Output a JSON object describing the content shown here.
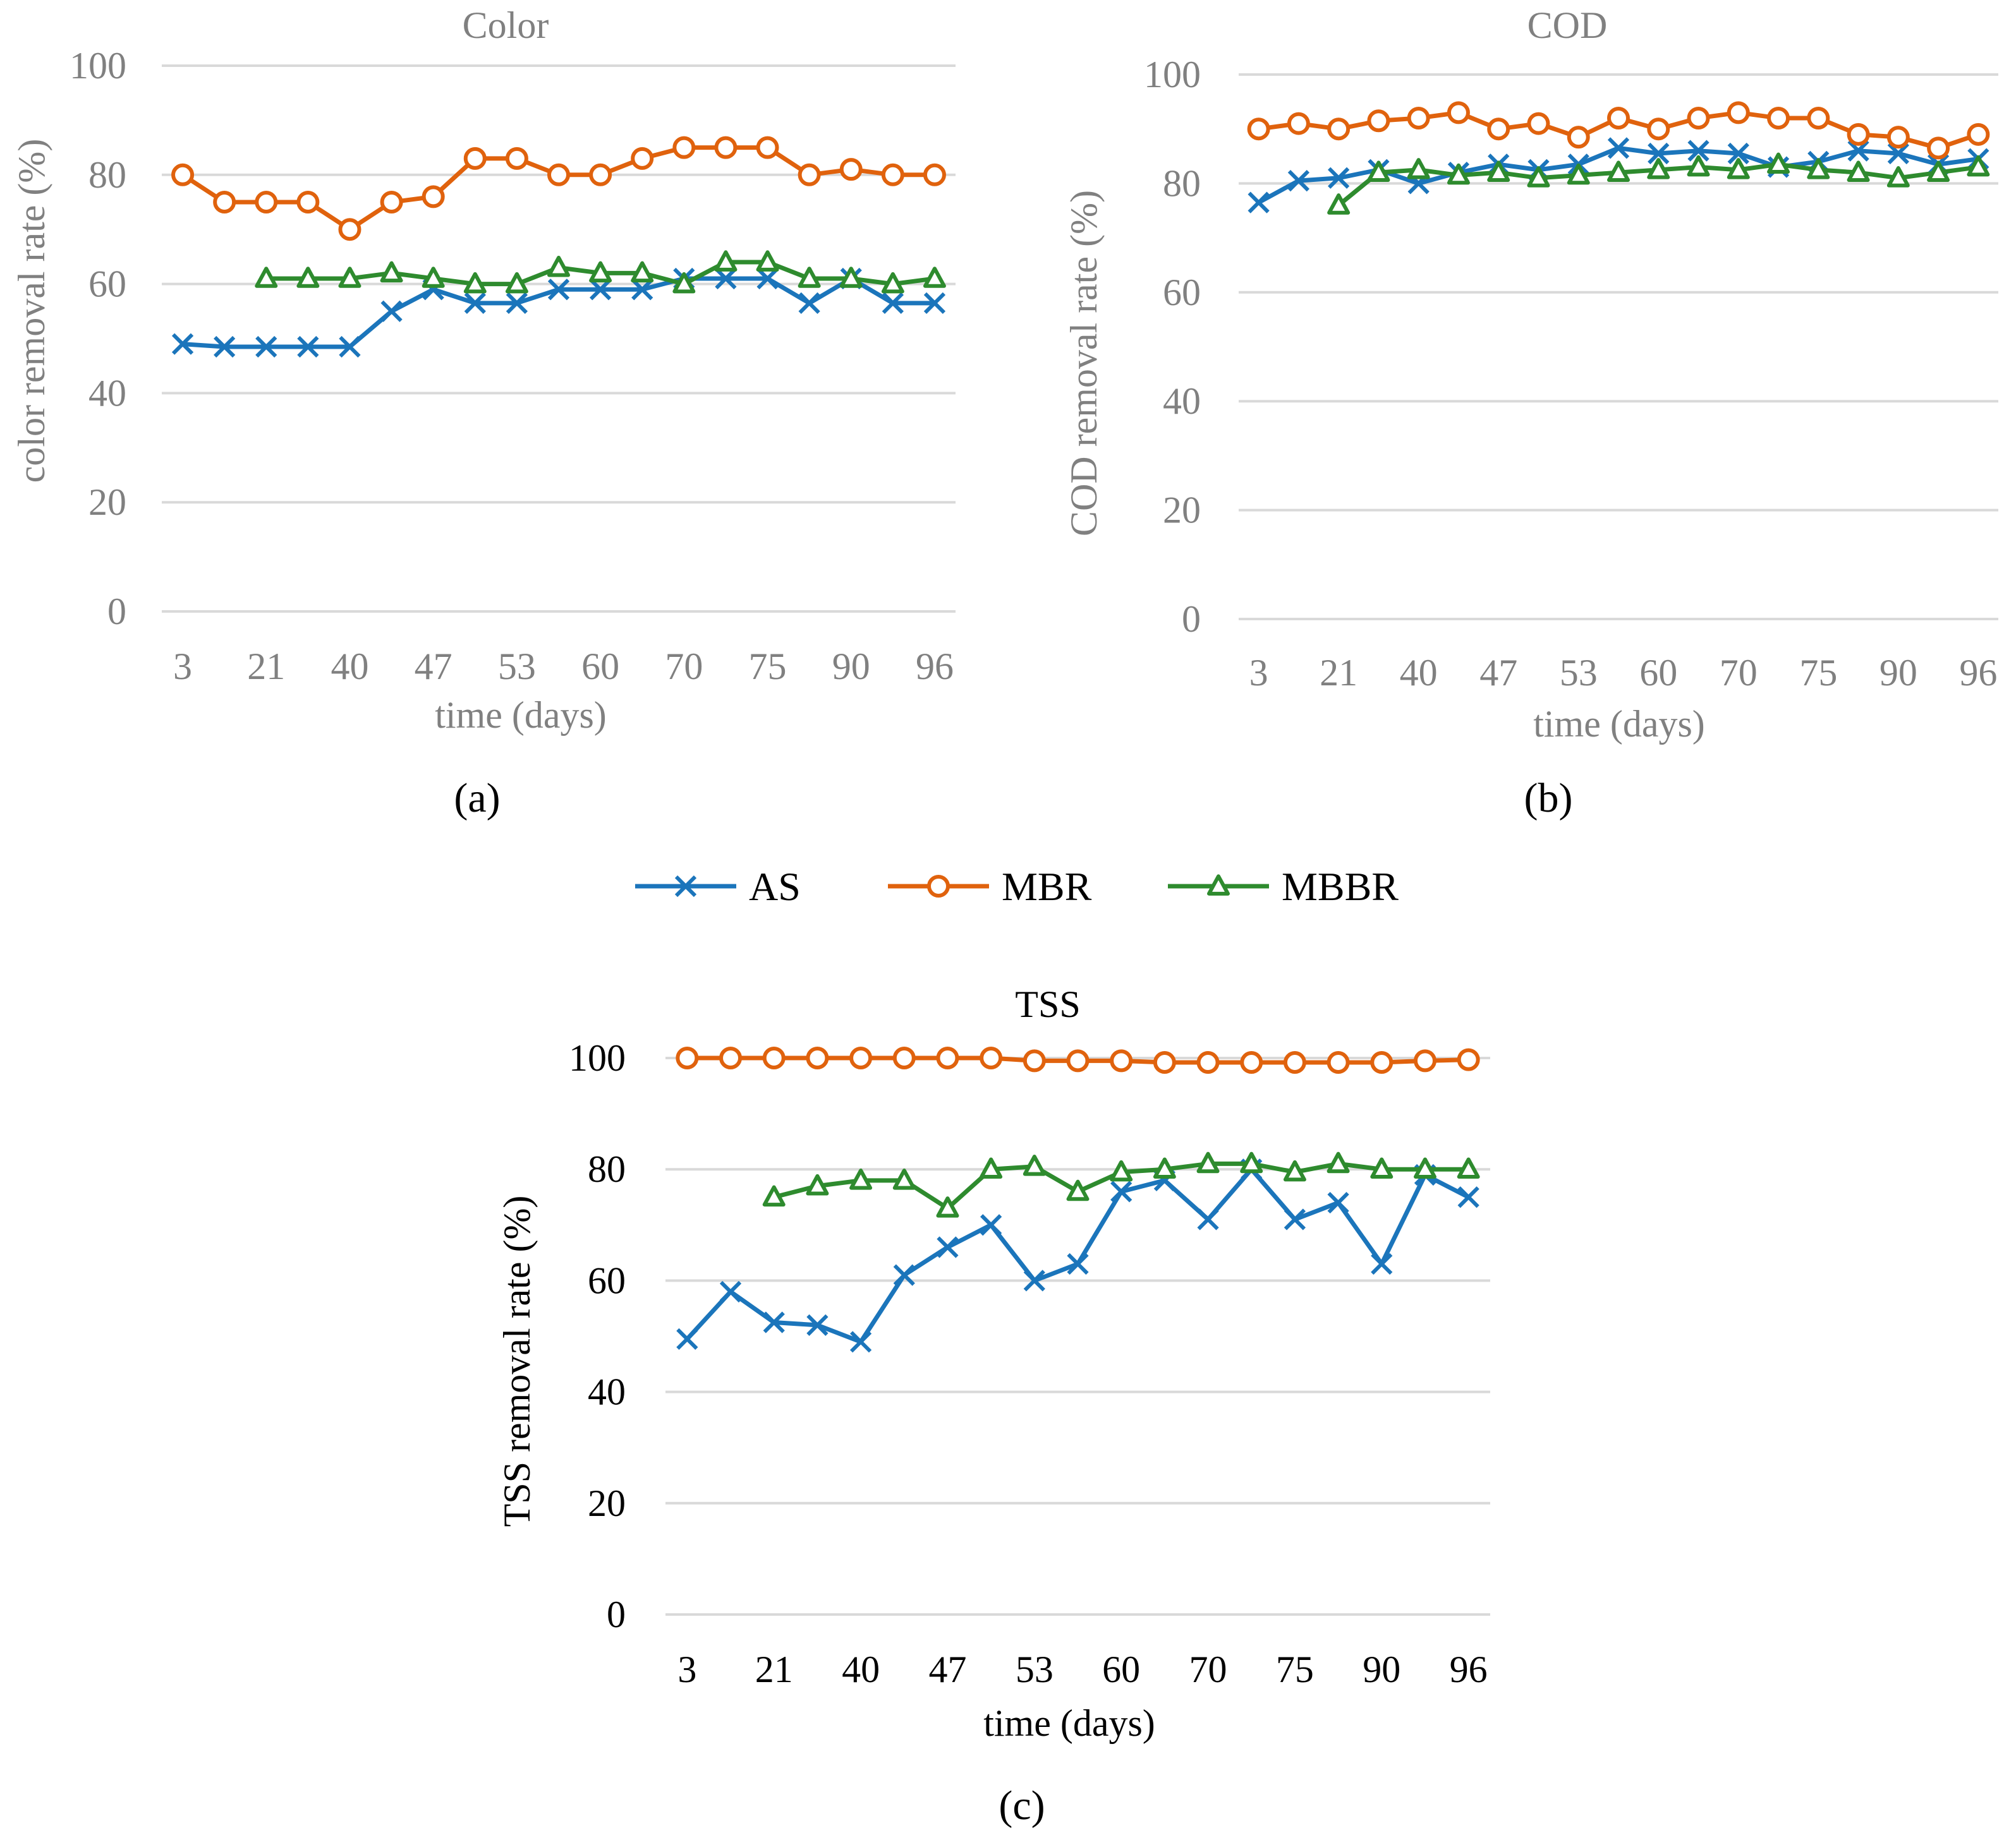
{
  "legend": {
    "items": [
      {
        "name": "AS",
        "color": "#1b75bb",
        "marker": "x"
      },
      {
        "name": "MBR",
        "color": "#e0620d",
        "marker": "circle"
      },
      {
        "name": "MBBR",
        "color": "#2e8b2e",
        "marker": "triangle"
      }
    ]
  },
  "panel_labels": [
    "(a)",
    "(b)",
    "(c)"
  ],
  "chart_data": [
    {
      "type": "line",
      "title": "Color",
      "xlabel": "time (days)",
      "ylabel": "color removal rate  (%)",
      "ylim": [
        0,
        100
      ],
      "yticks": [
        0,
        20,
        40,
        60,
        80,
        100
      ],
      "x_tick_labels": [
        "3",
        "21",
        "40",
        "47",
        "53",
        "60",
        "70",
        "75",
        "90",
        "96"
      ],
      "grid": true,
      "text_color": "#808080",
      "series": [
        {
          "name": "AS",
          "values": [
            49,
            48.5,
            48.5,
            48.5,
            48.5,
            55,
            59,
            56.5,
            56.5,
            59,
            59,
            59,
            61,
            61,
            61,
            56.5,
            61,
            56.5,
            56.5
          ]
        },
        {
          "name": "MBR",
          "values": [
            80,
            75,
            75,
            75,
            70,
            75,
            76,
            83,
            83,
            80,
            80,
            83,
            85,
            85,
            85,
            80,
            81,
            80,
            80
          ]
        },
        {
          "name": "MBBR",
          "values": [
            null,
            null,
            61,
            61,
            61,
            62,
            61,
            60,
            60,
            63,
            62,
            62,
            60,
            64,
            64,
            61,
            61,
            60,
            61
          ]
        }
      ]
    },
    {
      "type": "line",
      "title": "COD",
      "xlabel": "time (days)",
      "ylabel": "COD removal rate (%)",
      "ylim": [
        0,
        100
      ],
      "yticks": [
        0,
        20,
        40,
        60,
        80,
        100
      ],
      "x_tick_labels": [
        "3",
        "21",
        "40",
        "47",
        "53",
        "60",
        "70",
        "75",
        "90",
        "96"
      ],
      "grid": true,
      "text_color": "#808080",
      "series": [
        {
          "name": "AS",
          "values": [
            76.5,
            80.5,
            81,
            82.5,
            80,
            82,
            83.5,
            82.5,
            83.5,
            86.5,
            85.5,
            86,
            85.5,
            83,
            84,
            86,
            85.5,
            83.5,
            84.5
          ]
        },
        {
          "name": "MBR",
          "values": [
            90,
            91,
            90,
            91.5,
            92,
            93,
            90,
            91,
            88.5,
            92,
            90,
            92,
            93,
            92,
            92,
            89,
            88.5,
            86.5,
            89
          ]
        },
        {
          "name": "MBBR",
          "values": [
            null,
            null,
            76,
            82,
            82.5,
            81.5,
            82,
            81,
            81.5,
            82,
            82.5,
            83,
            82.5,
            83.5,
            82.5,
            82,
            81,
            82,
            83
          ]
        }
      ]
    },
    {
      "type": "line",
      "title": "TSS",
      "xlabel": "time (days)",
      "ylabel": "TSS removal rate (%)",
      "ylim": [
        0,
        100
      ],
      "yticks": [
        0,
        20,
        40,
        60,
        80,
        100
      ],
      "x_tick_labels": [
        "3",
        "21",
        "40",
        "47",
        "53",
        "60",
        "70",
        "75",
        "90",
        "96"
      ],
      "grid": true,
      "text_color": "#000000",
      "series": [
        {
          "name": "AS",
          "values": [
            49.5,
            58,
            52.5,
            52,
            49,
            61,
            66,
            70,
            60,
            63,
            76,
            78,
            71,
            80,
            71,
            74,
            63,
            79,
            75
          ]
        },
        {
          "name": "MBR",
          "values": [
            100,
            100,
            100,
            100,
            100,
            100,
            100,
            100,
            99.5,
            99.5,
            99.5,
            99.2,
            99.2,
            99.2,
            99.2,
            99.2,
            99.2,
            99.5,
            99.7
          ]
        },
        {
          "name": "MBBR",
          "values": [
            null,
            null,
            75,
            77,
            78,
            78,
            73,
            80,
            80.5,
            76,
            79.5,
            80,
            81,
            81,
            79.5,
            81,
            80,
            80,
            80
          ]
        }
      ]
    }
  ]
}
